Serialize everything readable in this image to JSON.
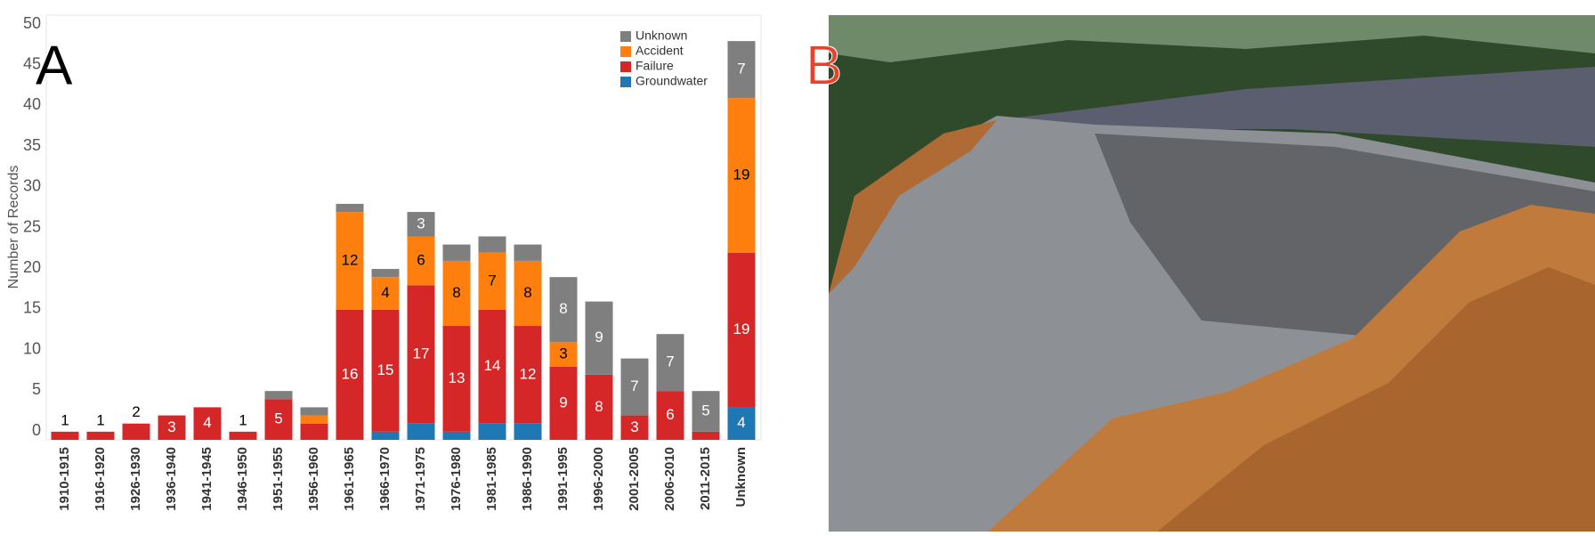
{
  "chart_data": {
    "type": "stacked-bar",
    "panel_label": "A",
    "y_label": "Number of Records",
    "categories": [
      "1910-1915",
      "1916-1920",
      "1926-1930",
      "1936-1940",
      "1941-1945",
      "1946-1950",
      "1951-1955",
      "1956-1960",
      "1961-1965",
      "1966-1970",
      "1971-1975",
      "1976-1980",
      "1981-1985",
      "1986-1990",
      "1991-1995",
      "1996-2000",
      "2001-2005",
      "2006-2010",
      "2011-2015",
      "Unknown"
    ],
    "series": [
      {
        "name": "Groundwater",
        "color": "#1f77b4",
        "values": [
          0,
          0,
          0,
          0,
          0,
          0,
          0,
          0,
          0,
          1,
          2,
          1,
          2,
          2,
          0,
          0,
          0,
          0,
          0,
          4
        ]
      },
      {
        "name": "Failure",
        "color": "#d62728",
        "values": [
          1,
          1,
          2,
          3,
          4,
          1,
          5,
          2,
          16,
          15,
          17,
          13,
          14,
          12,
          9,
          8,
          3,
          6,
          1,
          19
        ]
      },
      {
        "name": "Accident",
        "color": "#ff7f0e",
        "values": [
          0,
          0,
          0,
          0,
          0,
          0,
          0,
          1,
          12,
          4,
          6,
          8,
          7,
          8,
          3,
          0,
          0,
          0,
          0,
          19
        ]
      },
      {
        "name": "Unknown",
        "color": "#7f7f7f",
        "values": [
          0,
          0,
          0,
          0,
          0,
          0,
          1,
          1,
          1,
          1,
          3,
          2,
          2,
          2,
          8,
          9,
          7,
          7,
          5,
          7
        ]
      }
    ],
    "ylim": [
      0,
      50
    ],
    "yticks": [
      0,
      5,
      10,
      15,
      20,
      25,
      30,
      35,
      40,
      45,
      50
    ],
    "legend": "upper right"
  },
  "photo": {
    "panel_label": "B"
  }
}
